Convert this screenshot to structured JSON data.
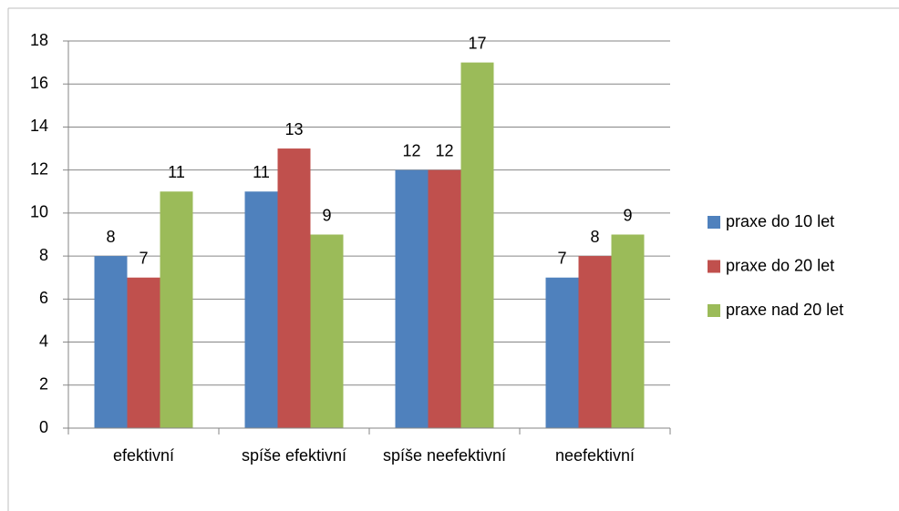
{
  "chart_data": {
    "type": "bar",
    "categories": [
      "efektivní",
      "spíše efektivní",
      "spíše neefektivní",
      "neefektivní"
    ],
    "series": [
      {
        "name": "praxe do 10 let",
        "color": "#4f81bd",
        "values": [
          8,
          11,
          12,
          7
        ]
      },
      {
        "name": "praxe do 20 let",
        "color": "#c0504d",
        "values": [
          7,
          13,
          12,
          8
        ]
      },
      {
        "name": "praxe nad 20 let",
        "color": "#9bbb59",
        "values": [
          11,
          9,
          17,
          9
        ]
      }
    ],
    "ylim": [
      0,
      18
    ],
    "yticks": [
      0,
      2,
      4,
      6,
      8,
      10,
      12,
      14,
      16,
      18
    ],
    "grid": true,
    "legend": "right"
  }
}
